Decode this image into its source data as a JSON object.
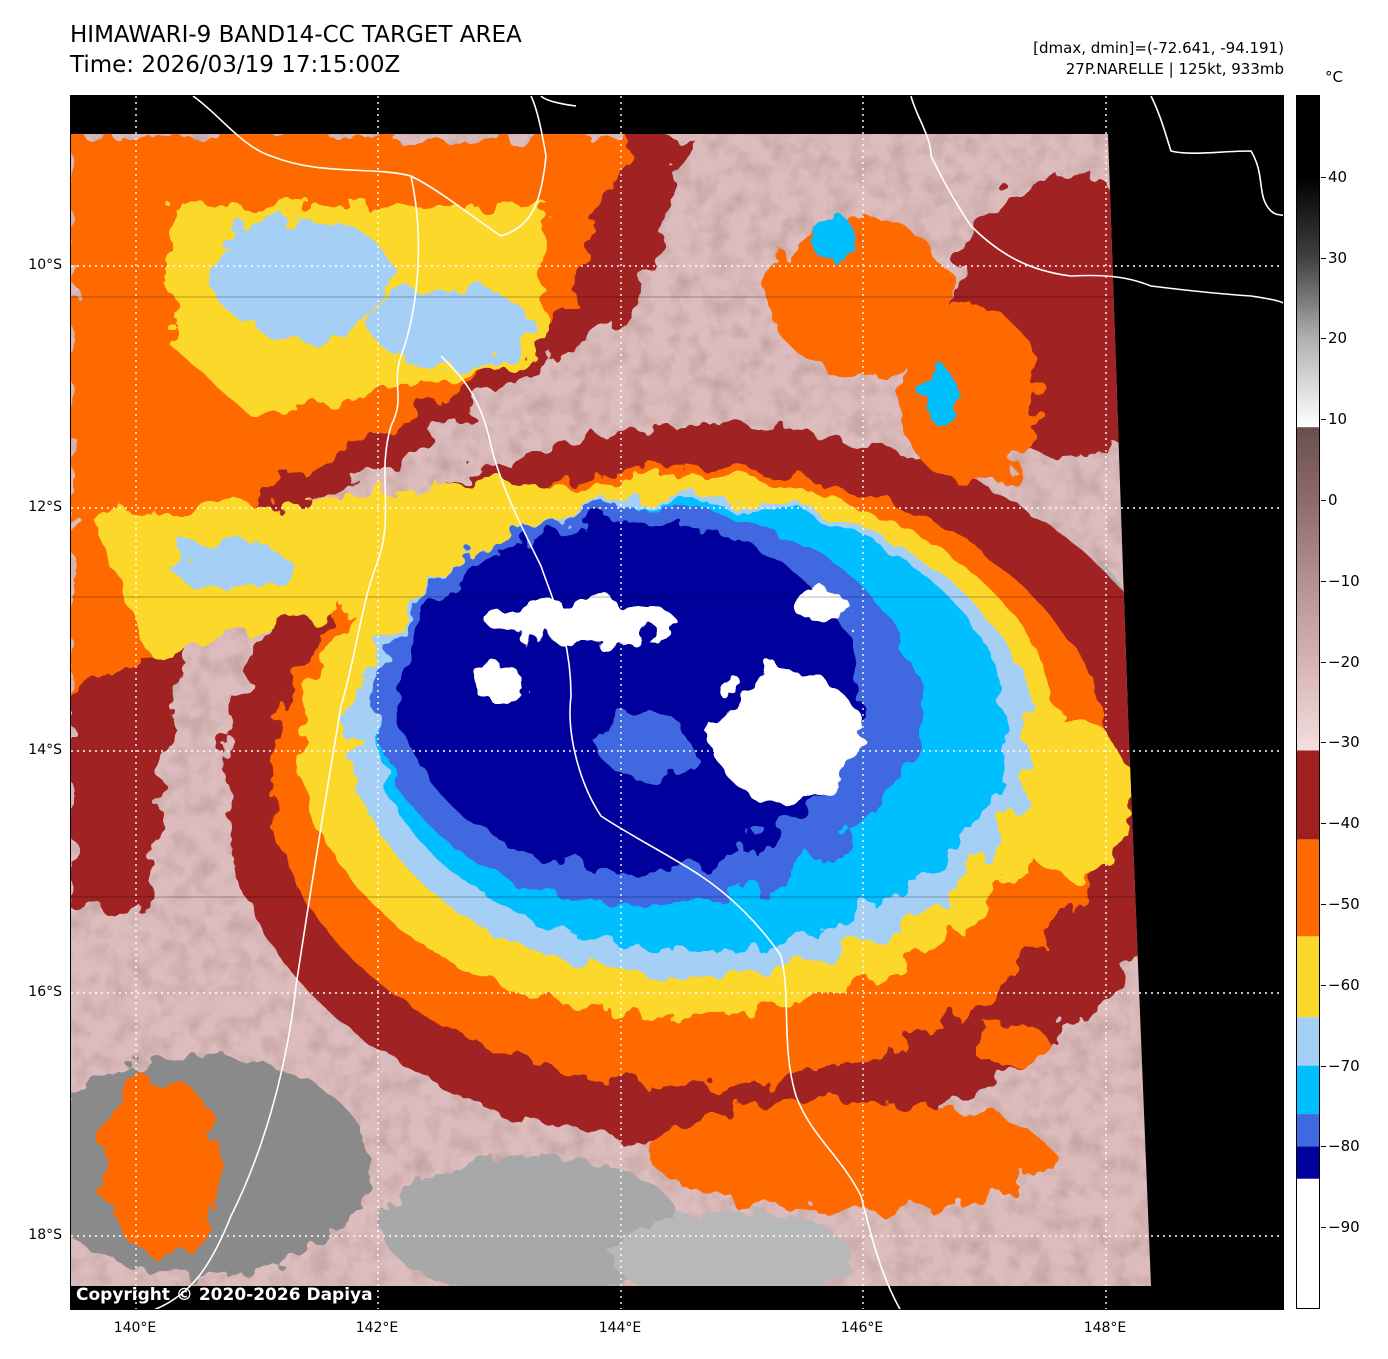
{
  "header": {
    "title_line1": "HIMAWARI-9 BAND14-CC TARGET AREA",
    "title_line2": "Time: 2026/03/19 17:15:00Z",
    "stats_line": "[dmax, dmin]=(-72.641, -94.191)",
    "storm_line": "27P.NARELLE | 125kt, 933mb"
  },
  "map": {
    "latitude_labels": [
      "10°S",
      "12°S",
      "14°S",
      "16°S",
      "18°S"
    ],
    "longitude_labels": [
      "140°E",
      "142°E",
      "144°E",
      "146°E",
      "148°E"
    ],
    "grid_style": "dotted white",
    "copyright": "Copyright © 2020-2026 Dapiya",
    "no_data_color": "#000000",
    "coastline_color": "#ffffff"
  },
  "colorbar": {
    "unit": "°C",
    "tick_labels": [
      "40",
      "30",
      "20",
      "10",
      "0",
      "−10",
      "−20",
      "−30",
      "−40",
      "−50",
      "−60",
      "−70",
      "−80",
      "−90"
    ],
    "range_celsius": [
      -100,
      50
    ],
    "bands": [
      {
        "from": -100,
        "to": -84,
        "color": "#ffffff"
      },
      {
        "from": -84,
        "to": -80,
        "color": "#00009c"
      },
      {
        "from": -80,
        "to": -76,
        "color": "#4169e1"
      },
      {
        "from": -76,
        "to": -70,
        "color": "#00bfff"
      },
      {
        "from": -70,
        "to": -64,
        "color": "#a6cff6"
      },
      {
        "from": -64,
        "to": -54,
        "color": "#fbd82a"
      },
      {
        "from": -54,
        "to": -42,
        "color": "#ff6a00"
      },
      {
        "from": -42,
        "to": -31,
        "color": "#a02020"
      }
    ],
    "gradient_stops": [
      {
        "t": -31,
        "color": "#f4dede"
      },
      {
        "t": -20,
        "color": "#d6b3b3"
      },
      {
        "t": -10,
        "color": "#b59090"
      },
      {
        "t": 0,
        "color": "#8f6a6a"
      },
      {
        "t": 9,
        "color": "#6a4f4f"
      },
      {
        "t": 9.01,
        "color": "#ffffff"
      },
      {
        "t": 20,
        "color": "#b0b0b0"
      },
      {
        "t": 30,
        "color": "#404040"
      },
      {
        "t": 40,
        "color": "#000000"
      },
      {
        "t": 50,
        "color": "#000000"
      }
    ]
  }
}
